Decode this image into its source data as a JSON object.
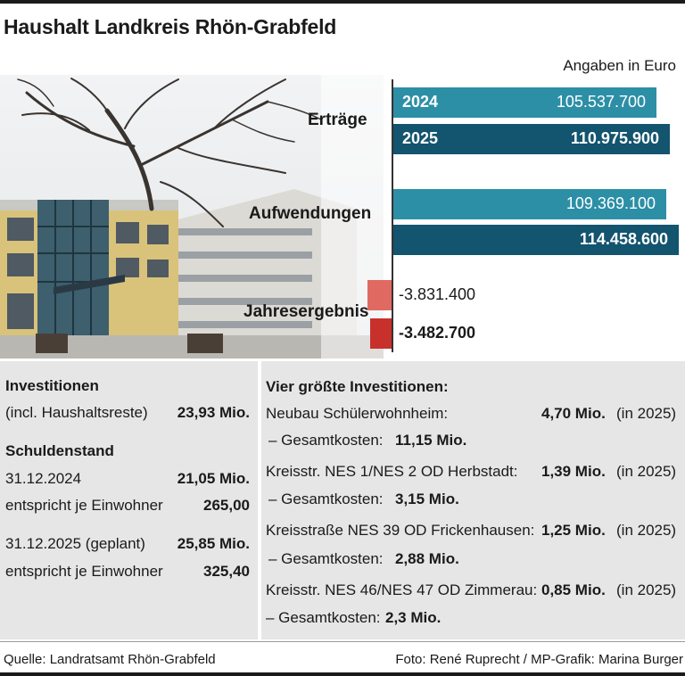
{
  "title": "Haushalt Landkreis Rhön-Grabfeld",
  "unit_note": "Angaben in Euro",
  "colors": {
    "bar_2024": "#2c8fa6",
    "bar_2025": "#13546e",
    "neg_2024": "#e06a62",
    "neg_2025": "#c8302c",
    "panel": "#e6e6e6"
  },
  "chart_data": {
    "type": "bar",
    "orientation": "horizontal",
    "categories": [
      "Erträge",
      "Aufwendungen",
      "Jahresergebnis"
    ],
    "series": [
      {
        "name": "2024",
        "values": [
          105537700,
          109369100,
          -3831400
        ],
        "labels": [
          "105.537.700",
          "109.369.100",
          "-3.831.400"
        ]
      },
      {
        "name": "2025",
        "values": [
          110975900,
          114458600,
          -3482700
        ],
        "labels": [
          "110.975.900",
          "114.458.600",
          "-3.482.700"
        ]
      }
    ],
    "unit": "Euro"
  },
  "investments": {
    "heading": "Investitionen",
    "line": "(incl. Haushaltsreste)",
    "value": "23,93 Mio."
  },
  "debt": {
    "heading": "Schuldenstand",
    "rows": [
      {
        "label": "31.12.2024",
        "value": "21,05 Mio.",
        "per_label": "entspricht je Einwohner",
        "per_value": "265,00"
      },
      {
        "label": "31.12.2025 (geplant)",
        "value": "25,85 Mio.",
        "per_label": "entspricht je Einwohner",
        "per_value": "325,40"
      }
    ]
  },
  "top_investments": {
    "heading": "Vier größte Investitionen:",
    "items": [
      {
        "name": "Neubau Schülerwohnheim:",
        "amount": "4,70 Mio.",
        "year": "(in 2025)",
        "total_label": "– Gesamtkosten:",
        "total": "11,15 Mio."
      },
      {
        "name": "Kreisstr. NES 1/NES 2 OD Herbstadt:",
        "amount": "1,39 Mio.",
        "year": "(in 2025)",
        "total_label": "– Gesamtkosten:",
        "total": "3,15 Mio."
      },
      {
        "name": "Kreisstraße NES 39 OD Frickenhausen:",
        "amount": "1,25 Mio.",
        "year": "(in 2025)",
        "total_label": "– Gesamtkosten:",
        "total": "2,88 Mio."
      },
      {
        "name": "Kreisstr. NES 46/NES 47 OD Zimmerau:",
        "amount": "0,85 Mio.",
        "year": "(in 2025)",
        "total_label": "– Gesamtkosten:",
        "total": "2,3 Mio."
      }
    ]
  },
  "footer": {
    "source": "Quelle: Landratsamt Rhön-Grabfeld",
    "credit": "Foto: René Ruprecht / MP-Grafik: Marina Burger"
  }
}
